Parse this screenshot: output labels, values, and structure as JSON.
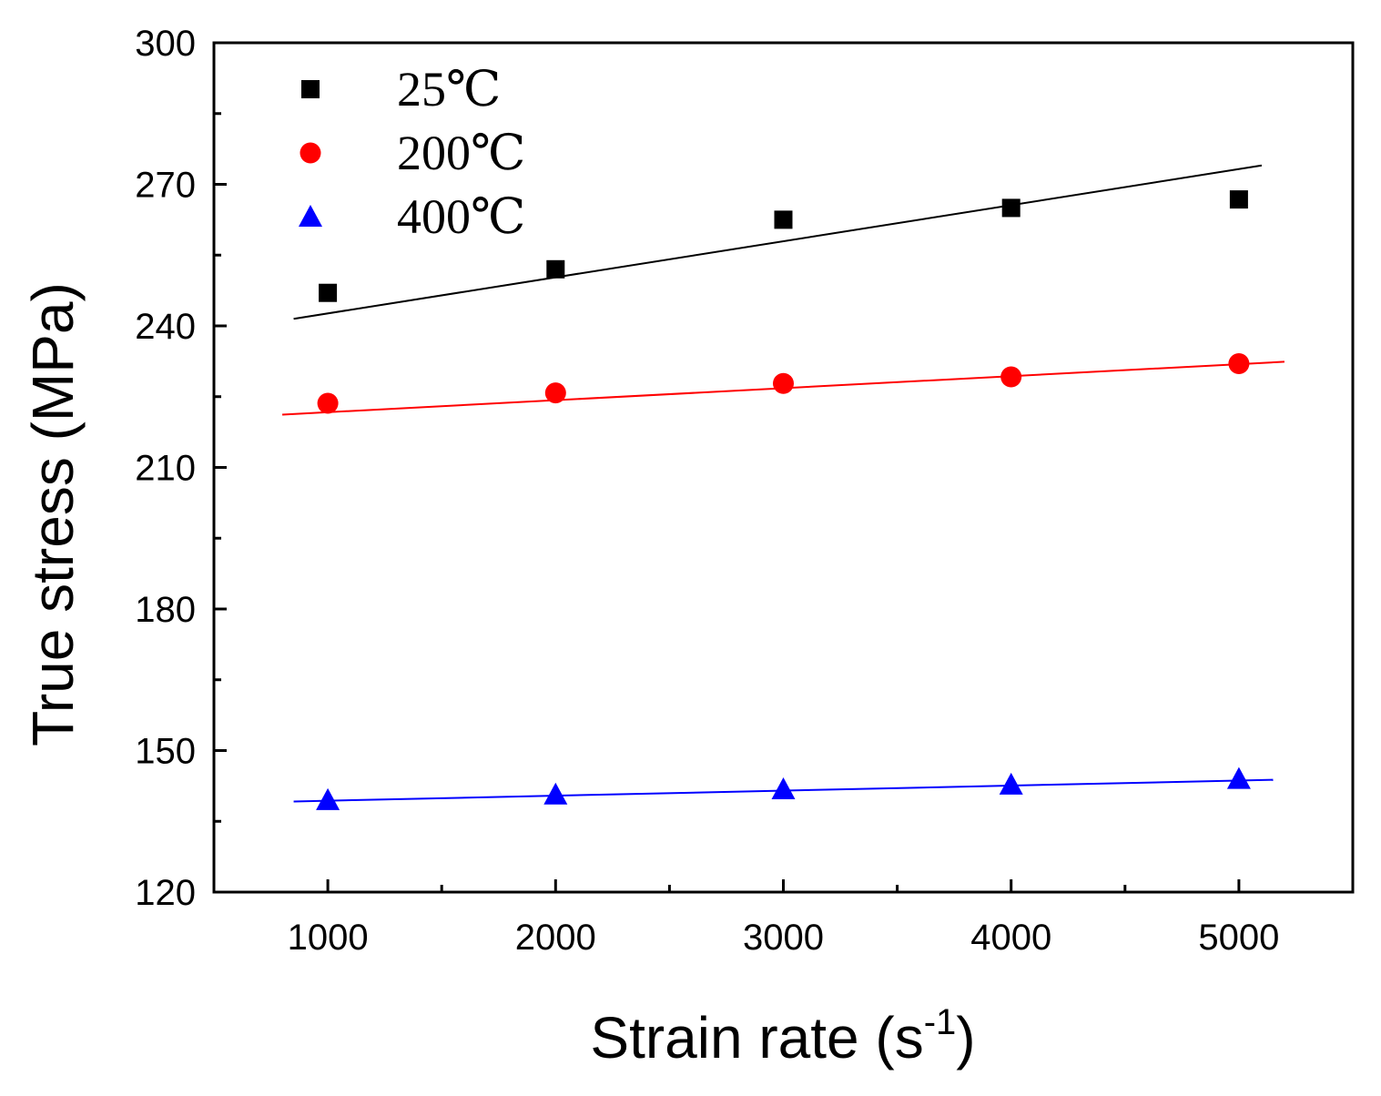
{
  "chart_data": {
    "type": "scatter",
    "title": "",
    "xlabel": "Strain rate (s",
    "xlabel_superscript": "-1",
    "xlabel_close": ")",
    "ylabel": "True stress  (MPa)",
    "xlim": [
      500,
      5500
    ],
    "ylim": [
      120,
      300
    ],
    "xticks": [
      1000,
      2000,
      3000,
      4000,
      5000
    ],
    "xtick_labels": [
      "1000",
      "2000",
      "3000",
      "4000",
      "5000"
    ],
    "xminor": [
      1500,
      2500,
      3500,
      4500
    ],
    "yticks": [
      120,
      150,
      180,
      210,
      240,
      270,
      300
    ],
    "ytick_labels": [
      "120",
      "150",
      "180",
      "210",
      "240",
      "270",
      "300"
    ],
    "yminor": [
      135,
      165,
      195,
      225,
      255,
      285
    ],
    "grid": false,
    "legend_position": "top-left",
    "series": [
      {
        "name": "25℃",
        "marker": "square",
        "color": "#000000",
        "x": [
          1000,
          2000,
          3000,
          4000,
          5000
        ],
        "y": [
          247.0,
          252.0,
          262.5,
          265.0,
          266.8
        ],
        "fit_x": [
          850,
          5100
        ],
        "fit_y": [
          241.5,
          274.0
        ]
      },
      {
        "name": "200℃",
        "marker": "circle",
        "color": "#ff0000",
        "x": [
          1000,
          2000,
          3000,
          4000,
          5000
        ],
        "y": [
          223.6,
          225.8,
          227.8,
          229.2,
          232.0
        ],
        "fit_x": [
          800,
          5200
        ],
        "fit_y": [
          221.2,
          232.4
        ]
      },
      {
        "name": "400℃",
        "marker": "triangle",
        "color": "#0000ff",
        "x": [
          1000,
          2000,
          3000,
          4000,
          5000
        ],
        "y": [
          139.5,
          140.7,
          141.8,
          142.8,
          144.0
        ],
        "fit_x": [
          850,
          5150
        ],
        "fit_y": [
          139.2,
          143.8
        ]
      }
    ]
  }
}
